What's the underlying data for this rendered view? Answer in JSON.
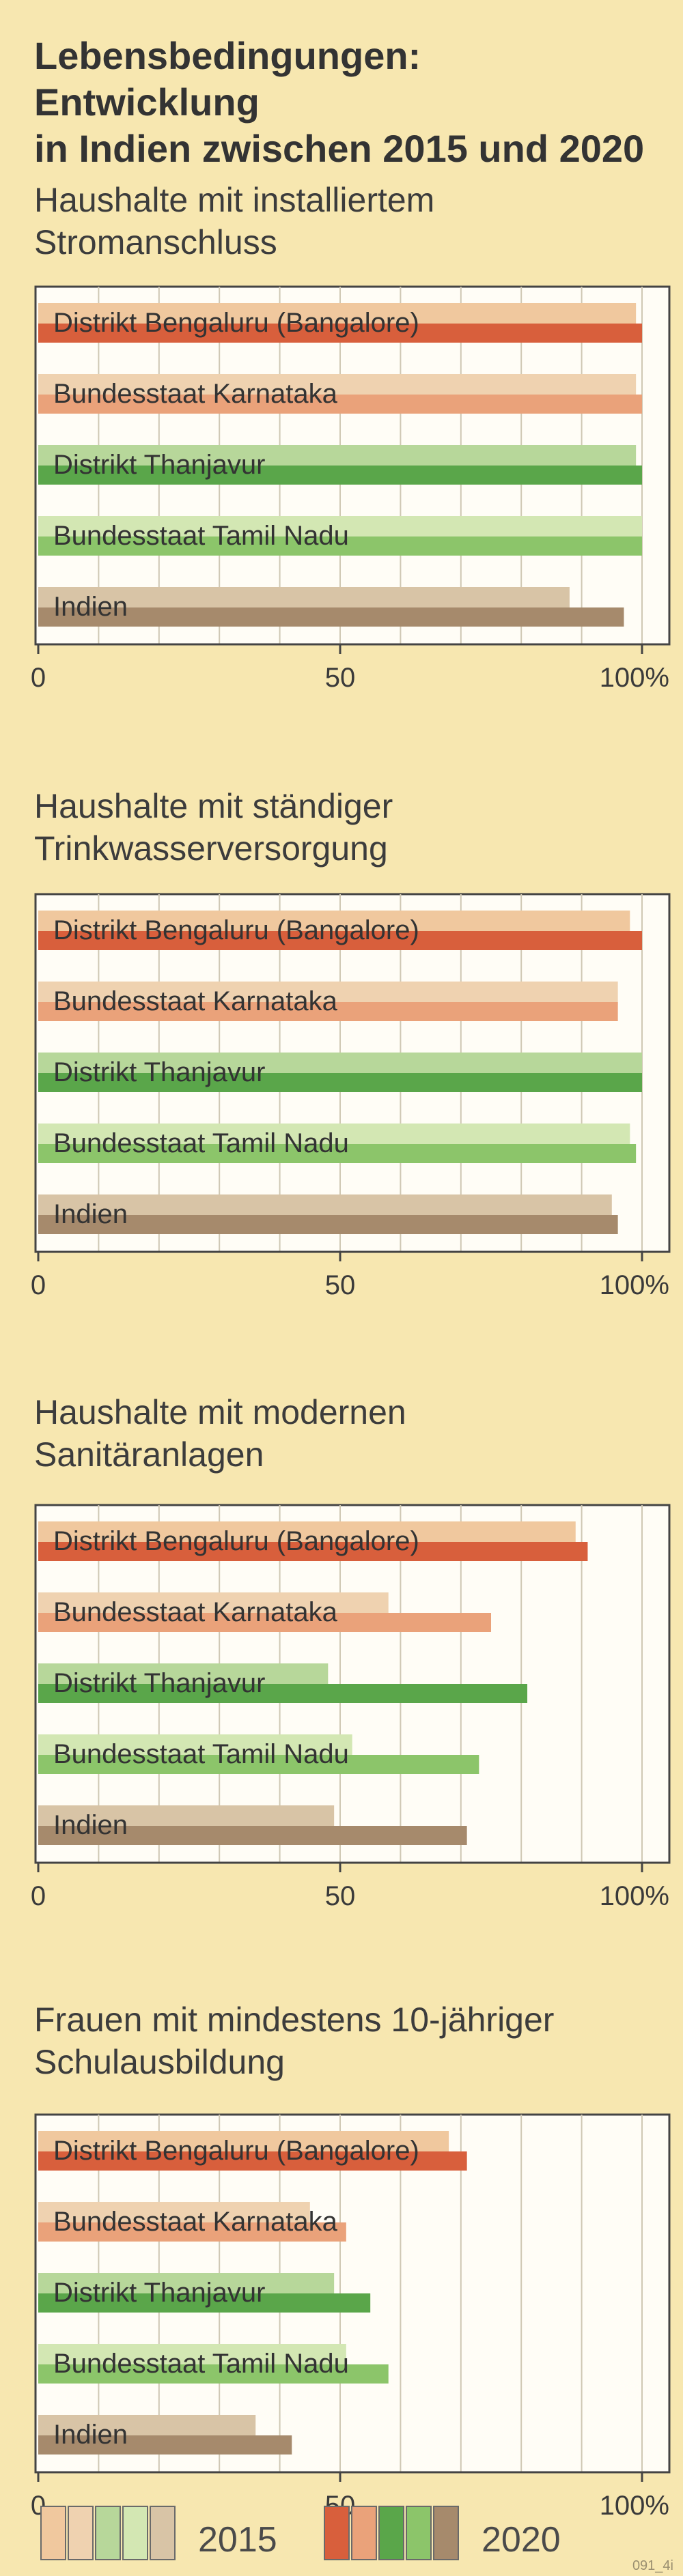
{
  "title": "Lebensbedingungen: Entwicklung\nin Indien zwischen 2015 und 2020",
  "chart_data": [
    {
      "type": "bar",
      "title": "Haushalte mit installiertem\nStromanschluss",
      "categories": [
        "Distrikt Bengaluru (Bangalore)",
        "Bundesstaat Karnataka",
        "Distrikt Thanjavur",
        "Bundesstaat Tamil Nadu",
        "Indien"
      ],
      "series": [
        {
          "name": "2015",
          "values": [
            99,
            99,
            99,
            100,
            88
          ]
        },
        {
          "name": "2020",
          "values": [
            100,
            100,
            100,
            100,
            97
          ]
        }
      ],
      "xlim": [
        0,
        100
      ],
      "ticks": [
        "0",
        "50",
        "100%"
      ],
      "grid": true
    },
    {
      "type": "bar",
      "title": "Haushalte mit ständiger\nTrinkwasserversorgung",
      "categories": [
        "Distrikt Bengaluru (Bangalore)",
        "Bundesstaat Karnataka",
        "Distrikt Thanjavur",
        "Bundesstaat Tamil Nadu",
        "Indien"
      ],
      "series": [
        {
          "name": "2015",
          "values": [
            98,
            96,
            100,
            98,
            95
          ]
        },
        {
          "name": "2020",
          "values": [
            100,
            96,
            100,
            99,
            96
          ]
        }
      ],
      "xlim": [
        0,
        100
      ],
      "ticks": [
        "0",
        "50",
        "100%"
      ],
      "grid": true
    },
    {
      "type": "bar",
      "title": "Haushalte mit modernen\nSanitäranlagen",
      "categories": [
        "Distrikt Bengaluru (Bangalore)",
        "Bundesstaat Karnataka",
        "Distrikt Thanjavur",
        "Bundesstaat Tamil Nadu",
        "Indien"
      ],
      "series": [
        {
          "name": "2015",
          "values": [
            89,
            58,
            48,
            52,
            49
          ]
        },
        {
          "name": "2020",
          "values": [
            91,
            75,
            81,
            73,
            71
          ]
        }
      ],
      "xlim": [
        0,
        100
      ],
      "ticks": [
        "0",
        "50",
        "100%"
      ],
      "grid": true
    },
    {
      "type": "bar",
      "title": "Frauen mit mindestens 10-jähriger\nSchulausbildung",
      "categories": [
        "Distrikt Bengaluru (Bangalore)",
        "Bundesstaat Karnataka",
        "Distrikt Thanjavur",
        "Bundesstaat Tamil Nadu",
        "Indien"
      ],
      "series": [
        {
          "name": "2015",
          "values": [
            68,
            45,
            49,
            51,
            36
          ]
        },
        {
          "name": "2020",
          "values": [
            71,
            51,
            55,
            58,
            42
          ]
        }
      ],
      "xlim": [
        0,
        100
      ],
      "ticks": [
        "0",
        "50",
        "100%"
      ],
      "grid": true
    }
  ],
  "colors": {
    "2015": [
      "#f0c89e",
      "#efd2b0",
      "#b7d79a",
      "#d3e7b3",
      "#d8c4a6"
    ],
    "2020": [
      "#d85f3c",
      "#eaa27a",
      "#5aa64a",
      "#8cc56a",
      "#a68a6c"
    ]
  },
  "legend": {
    "label_2015": "2015",
    "label_2020": "2020"
  },
  "footnote": "091_4i"
}
